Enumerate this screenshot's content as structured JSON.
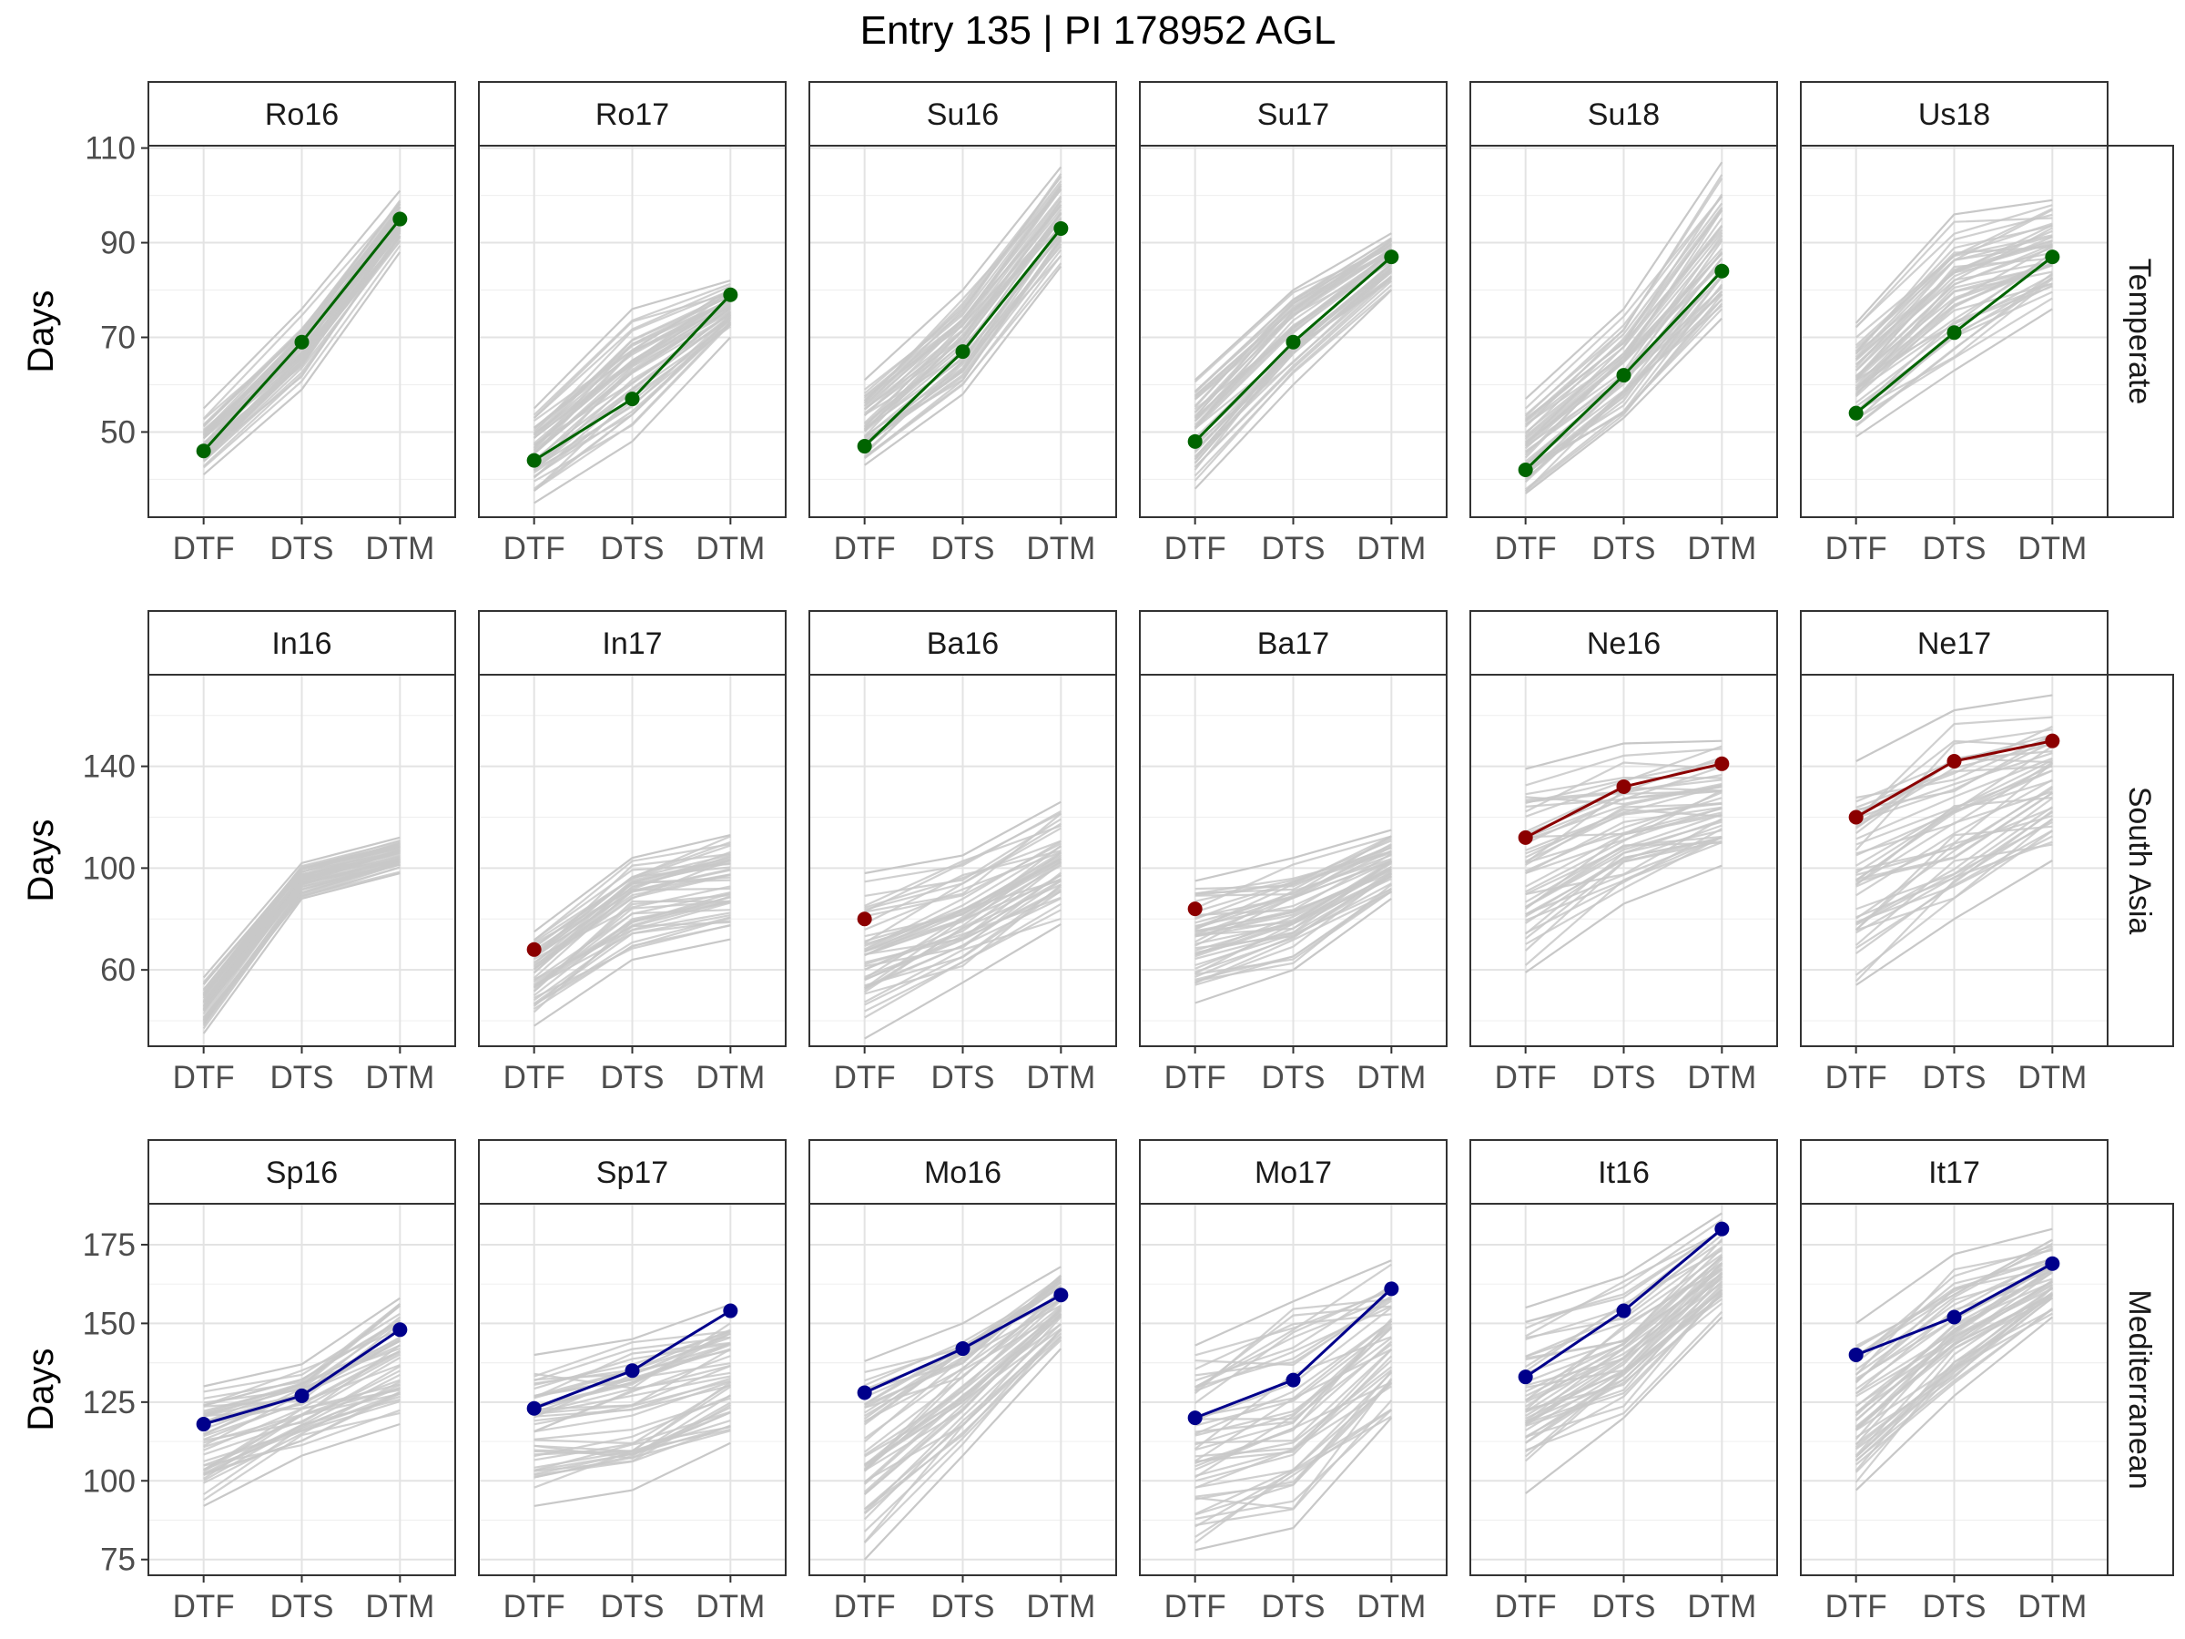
{
  "title": "Entry 135 | PI 178952 AGL",
  "chart_data": {
    "type": "line",
    "title": "Entry 135 | PI 178952 AGL",
    "ylabel": "Days",
    "x_categories": [
      "DTF",
      "DTS",
      "DTM"
    ],
    "grid": true,
    "rows": [
      {
        "region": "Temperate",
        "color": "#006400",
        "y_ticks": [
          50,
          70,
          90,
          110
        ],
        "ylim": [
          32,
          110.5
        ],
        "panels": [
          {
            "name": "Ro16",
            "highlight": [
              46,
              69,
              95
            ],
            "bundle": {
              "low": [
                41,
                59,
                88
              ],
              "high": [
                55,
                76,
                101
              ]
            }
          },
          {
            "name": "Ro17",
            "highlight": [
              44,
              57,
              79
            ],
            "bundle": {
              "low": [
                35,
                48,
                70
              ],
              "high": [
                55,
                76,
                82
              ]
            }
          },
          {
            "name": "Su16",
            "highlight": [
              47,
              67,
              93
            ],
            "bundle": {
              "low": [
                43,
                58,
                85
              ],
              "high": [
                61,
                80,
                106
              ]
            }
          },
          {
            "name": "Su17",
            "highlight": [
              48,
              69,
              87
            ],
            "bundle": {
              "low": [
                38,
                60,
                80
              ],
              "high": [
                61,
                80,
                92
              ]
            }
          },
          {
            "name": "Su18",
            "highlight": [
              42,
              62,
              84
            ],
            "bundle": {
              "low": [
                37,
                53,
                74
              ],
              "high": [
                57,
                76,
                107
              ]
            }
          },
          {
            "name": "Us18",
            "highlight": [
              54,
              71,
              87
            ],
            "bundle": {
              "low": [
                49,
                63,
                76
              ],
              "high": [
                73,
                96,
                99
              ]
            }
          }
        ]
      },
      {
        "region": "South Asia",
        "color": "#8B0000",
        "y_ticks": [
          60,
          100,
          140
        ],
        "ylim": [
          30,
          176
        ],
        "panels": [
          {
            "name": "In16",
            "highlight": null,
            "bundle": {
              "low": [
                35,
                88,
                98
              ],
              "high": [
                57,
                102,
                112
              ]
            }
          },
          {
            "name": "In17",
            "highlight": [
              68,
              null,
              null
            ],
            "bundle": {
              "low": [
                38,
                64,
                72
              ],
              "high": [
                75,
                104,
                113
              ]
            }
          },
          {
            "name": "Ba16",
            "highlight": [
              80,
              null,
              null
            ],
            "bundle": {
              "low": [
                33,
                55,
                78
              ],
              "high": [
                98,
                105,
                126
              ]
            }
          },
          {
            "name": "Ba17",
            "highlight": [
              84,
              null,
              null
            ],
            "bundle": {
              "low": [
                47,
                60,
                88
              ],
              "high": [
                95,
                104,
                115
              ]
            }
          },
          {
            "name": "Ne16",
            "highlight": [
              112,
              132,
              141
            ],
            "bundle": {
              "low": [
                59,
                86,
                101
              ],
              "high": [
                139,
                149,
                150
              ]
            }
          },
          {
            "name": "Ne17",
            "highlight": [
              120,
              142,
              150
            ],
            "bundle": {
              "low": [
                54,
                80,
                103
              ],
              "high": [
                142,
                162,
                168
              ]
            }
          }
        ]
      },
      {
        "region": "Mediterranean",
        "color": "#00008B",
        "y_ticks": [
          75,
          100,
          125,
          150,
          175
        ],
        "ylim": [
          70,
          188
        ],
        "panels": [
          {
            "name": "Sp16",
            "highlight": [
              118,
              127,
              148
            ],
            "bundle": {
              "low": [
                92,
                108,
                118
              ],
              "high": [
                130,
                137,
                158
              ]
            }
          },
          {
            "name": "Sp17",
            "highlight": [
              123,
              135,
              154
            ],
            "bundle": {
              "low": [
                92,
                97,
                112
              ],
              "high": [
                140,
                145,
                156
              ]
            }
          },
          {
            "name": "Mo16",
            "highlight": [
              128,
              142,
              159
            ],
            "bundle": {
              "low": [
                75,
                108,
                142
              ],
              "high": [
                138,
                150,
                168
              ]
            }
          },
          {
            "name": "Mo17",
            "highlight": [
              120,
              132,
              161
            ],
            "bundle": {
              "low": [
                78,
                85,
                120
              ],
              "high": [
                143,
                157,
                170
              ]
            }
          },
          {
            "name": "It16",
            "highlight": [
              133,
              154,
              180
            ],
            "bundle": {
              "low": [
                96,
                120,
                152
              ],
              "high": [
                155,
                165,
                185
              ]
            }
          },
          {
            "name": "It17",
            "highlight": [
              140,
              152,
              169
            ],
            "bundle": {
              "low": [
                97,
                127,
                152
              ],
              "high": [
                150,
                172,
                180
              ]
            }
          }
        ]
      }
    ]
  }
}
